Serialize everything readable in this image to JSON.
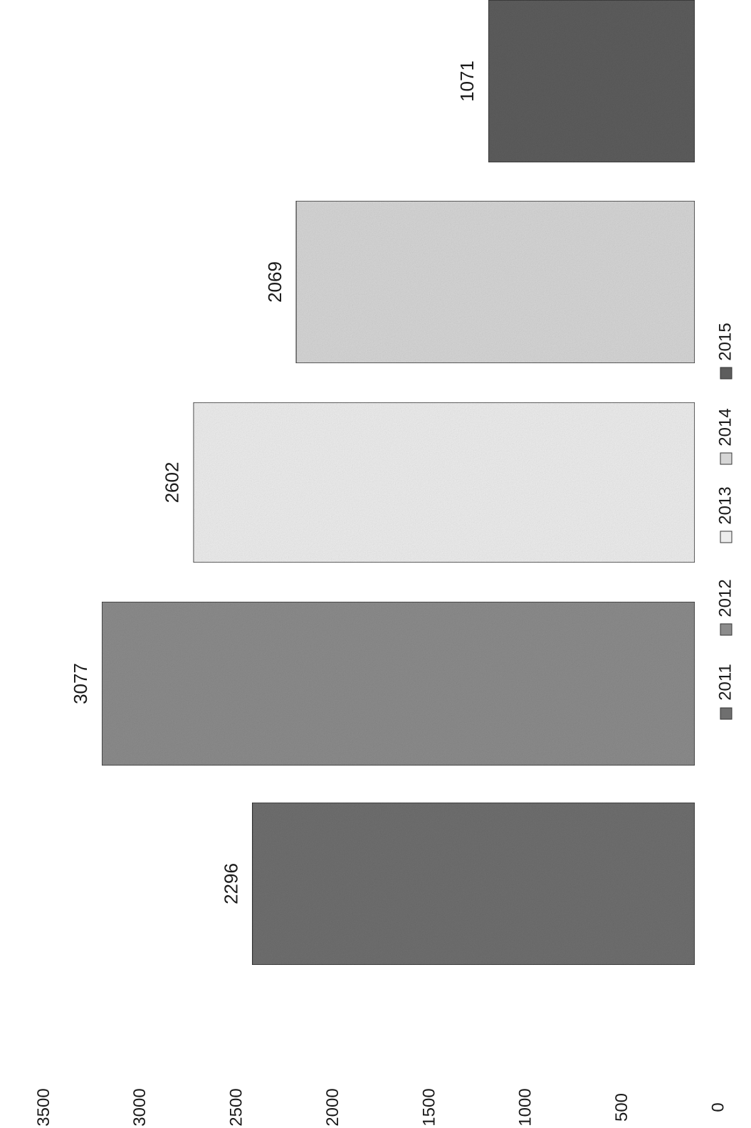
{
  "chart_data": {
    "type": "bar",
    "orientation": "vertical, page rotated 90° clockwise",
    "categories": [
      "2011",
      "2012",
      "2013",
      "2014",
      "2015"
    ],
    "values": [
      2296,
      3077,
      2602,
      2069,
      1071
    ],
    "data_labels": [
      "2296",
      "3077",
      "2602",
      "2069",
      "1071"
    ],
    "y_ticks": [
      "0",
      "500",
      "1000",
      "1500",
      "2000",
      "2500",
      "3000",
      "3500"
    ],
    "ylim": [
      0,
      3500
    ],
    "grid": false,
    "legend": {
      "placement": "bottom",
      "entries": [
        "2011",
        "2012",
        "2013",
        "2014",
        "2015"
      ]
    },
    "series_colors": [
      "#6f6f6f",
      "#8c8c8c",
      "#ededed",
      "#d6d6d6",
      "#5d5d5d"
    ]
  }
}
